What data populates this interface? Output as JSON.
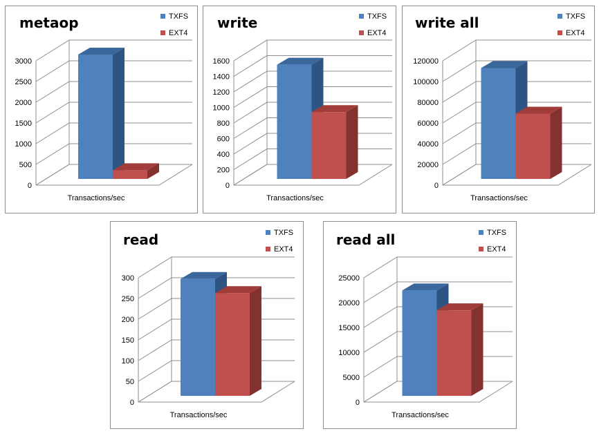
{
  "legend": {
    "series1": "TXFS",
    "series2": "EXT4"
  },
  "colors": {
    "txfs": {
      "front": "#4f81bd",
      "top": "#3a679c",
      "side": "#2e5484"
    },
    "ext4": {
      "front": "#c0504d",
      "top": "#a03d3a",
      "side": "#843230"
    }
  },
  "chart_data": [
    {
      "type": "bar",
      "title": "metaop",
      "xlabel": "Transactions/sec",
      "ylabel": "",
      "ylim": [
        0,
        3000
      ],
      "yticks": [
        "0",
        "500",
        "1000",
        "1500",
        "2000",
        "2500",
        "3000"
      ],
      "categories": [
        "Transactions/sec"
      ],
      "series": [
        {
          "name": "TXFS",
          "values": [
            3000
          ]
        },
        {
          "name": "EXT4",
          "values": [
            210
          ]
        }
      ],
      "grid": true,
      "legend_position": "top-right"
    },
    {
      "type": "bar",
      "title": "write",
      "xlabel": "Transactions/sec",
      "ylabel": "",
      "ylim": [
        0,
        1600
      ],
      "yticks": [
        "0",
        "200",
        "400",
        "600",
        "800",
        "1000",
        "1200",
        "1400",
        "1600"
      ],
      "categories": [
        "Transactions/sec"
      ],
      "series": [
        {
          "name": "TXFS",
          "values": [
            1470
          ]
        },
        {
          "name": "EXT4",
          "values": [
            860
          ]
        }
      ],
      "grid": true,
      "legend_position": "top-right"
    },
    {
      "type": "bar",
      "title": "write all",
      "xlabel": "Transactions/sec",
      "ylabel": "",
      "ylim": [
        0,
        120000
      ],
      "yticks": [
        "0",
        "20000",
        "40000",
        "60000",
        "80000",
        "100000",
        "120000"
      ],
      "categories": [
        "Transactions/sec"
      ],
      "series": [
        {
          "name": "TXFS",
          "values": [
            107000
          ]
        },
        {
          "name": "EXT4",
          "values": [
            63000
          ]
        }
      ],
      "grid": true,
      "legend_position": "top-right"
    },
    {
      "type": "bar",
      "title": "read",
      "xlabel": "Transactions/sec",
      "ylabel": "",
      "ylim": [
        0,
        300
      ],
      "yticks": [
        "0",
        "50",
        "100",
        "150",
        "200",
        "250",
        "300"
      ],
      "categories": [
        "Transactions/sec"
      ],
      "series": [
        {
          "name": "TXFS",
          "values": [
            282
          ]
        },
        {
          "name": "EXT4",
          "values": [
            248
          ]
        }
      ],
      "grid": true,
      "legend_position": "top-right"
    },
    {
      "type": "bar",
      "title": "read all",
      "xlabel": "Transactions/sec",
      "ylabel": "",
      "ylim": [
        0,
        25000
      ],
      "yticks": [
        "0",
        "5000",
        "10000",
        "15000",
        "20000",
        "25000"
      ],
      "categories": [
        "Transactions/sec"
      ],
      "series": [
        {
          "name": "TXFS",
          "values": [
            21200
          ]
        },
        {
          "name": "EXT4",
          "values": [
            17200
          ]
        }
      ],
      "grid": true,
      "legend_position": "top-right"
    }
  ]
}
